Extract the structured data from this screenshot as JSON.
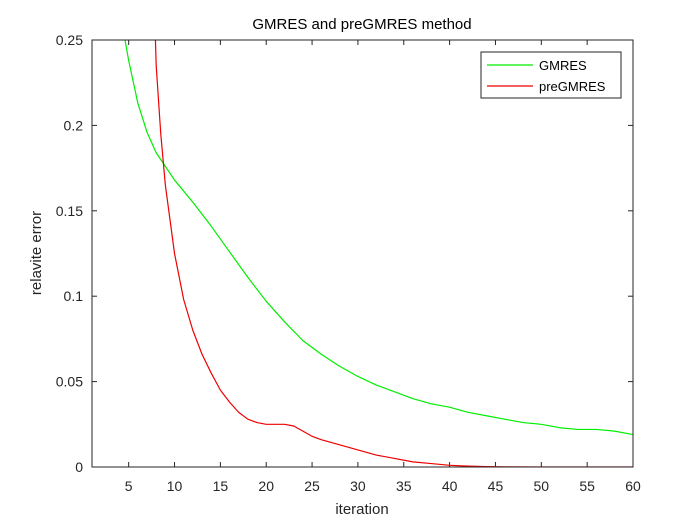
{
  "chart_data": {
    "type": "line",
    "title": "GMRES and preGMRES method",
    "xlabel": "iteration",
    "ylabel": "relavite error",
    "xlim": [
      1,
      60
    ],
    "ylim": [
      0,
      0.25
    ],
    "x_ticks": [
      5,
      10,
      15,
      20,
      25,
      30,
      35,
      40,
      45,
      50,
      55,
      60
    ],
    "y_ticks": [
      0,
      0.05,
      0.1,
      0.15,
      0.2,
      0.25
    ],
    "y_tick_labels": [
      "0",
      "0.05",
      "0.1",
      "0.15",
      "0.2",
      "0.25"
    ],
    "grid": false,
    "legend_position": "top-right",
    "series": [
      {
        "name": "GMRES",
        "color": "#00ee00",
        "x": [
          4.5,
          5,
          6,
          7,
          8,
          9,
          10,
          12,
          14,
          16,
          18,
          20,
          22,
          24,
          26,
          28,
          30,
          32,
          34,
          36,
          38,
          40,
          42,
          44,
          46,
          48,
          50,
          52,
          54,
          56,
          58,
          60
        ],
        "y": [
          0.253,
          0.238,
          0.213,
          0.196,
          0.184,
          0.176,
          0.168,
          0.155,
          0.141,
          0.126,
          0.111,
          0.097,
          0.085,
          0.074,
          0.066,
          0.059,
          0.053,
          0.048,
          0.044,
          0.04,
          0.037,
          0.035,
          0.032,
          0.03,
          0.028,
          0.026,
          0.025,
          0.023,
          0.022,
          0.022,
          0.021,
          0.019
        ]
      },
      {
        "name": "preGMRES",
        "color": "#ee0000",
        "x": [
          7.9,
          8,
          8.5,
          9,
          10,
          11,
          12,
          13,
          14,
          15,
          16,
          17,
          18,
          19,
          20,
          21,
          22,
          23,
          24,
          25,
          26,
          28,
          30,
          32,
          34,
          36,
          38,
          40,
          42,
          44,
          46,
          50,
          55,
          60
        ],
        "y": [
          0.253,
          0.235,
          0.195,
          0.165,
          0.125,
          0.098,
          0.08,
          0.066,
          0.055,
          0.045,
          0.038,
          0.032,
          0.028,
          0.026,
          0.025,
          0.025,
          0.025,
          0.024,
          0.021,
          0.018,
          0.016,
          0.013,
          0.01,
          0.007,
          0.005,
          0.003,
          0.002,
          0.001,
          0.0005,
          0.0002,
          0.0001,
          0.0,
          0.0,
          0.0
        ]
      }
    ]
  }
}
